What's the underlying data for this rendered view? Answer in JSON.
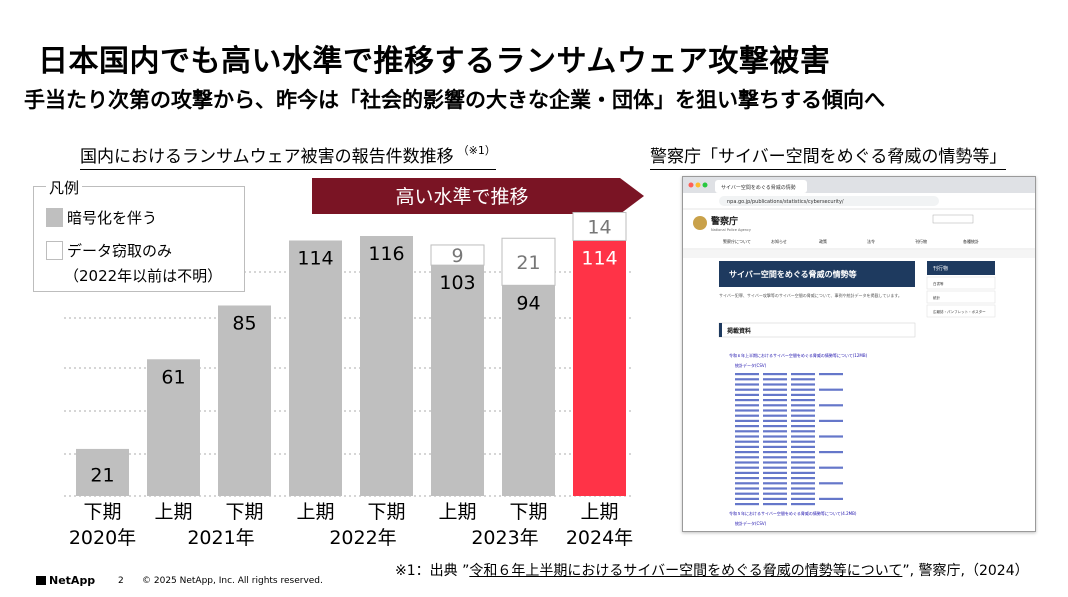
{
  "title": "日本国内でも高い水準で推移するランサムウェア攻撃被害",
  "subtitle": "手当たり次第の攻撃から、昨今は「社会的影響の大きな企業・団体」を狙い撃ちする傾向へ",
  "chart_heading": "国内におけるランサムウェア被害の報告件数推移",
  "chart_heading_note": "（※1）",
  "screenshot_heading": "警察庁「サイバー空間をめぐる脅威の情勢等」",
  "banner_text": "高い水準で推移",
  "legend": {
    "title": "凡例",
    "items": [
      {
        "label": "暗号化を伴う"
      },
      {
        "label": "データ窃取のみ"
      }
    ],
    "note": "（2022年以前は不明）"
  },
  "colors": {
    "encrypted_bar": "#bfbfbf",
    "highlight_bar": "#ff3347",
    "banner": "#7a1424",
    "data_theft_bar": "#ffffff"
  },
  "chart_data": {
    "type": "bar",
    "stacked": true,
    "categories": [
      {
        "half": "下期",
        "year": "2020年"
      },
      {
        "half": "上期",
        "year": ""
      },
      {
        "half": "下期",
        "year": "2021年"
      },
      {
        "half": "上期",
        "year": ""
      },
      {
        "half": "下期",
        "year": "2022年"
      },
      {
        "half": "上期",
        "year": ""
      },
      {
        "half": "下期",
        "year": "2023年"
      },
      {
        "half": "上期",
        "year": "2024年"
      }
    ],
    "year_labels": [
      "2020年",
      "2021年",
      "2022年",
      "2023年",
      "2024年"
    ],
    "series": [
      {
        "name": "暗号化を伴う",
        "values": [
          21,
          61,
          85,
          114,
          116,
          103,
          94,
          114
        ]
      },
      {
        "name": "データ窃取のみ",
        "values": [
          null,
          null,
          null,
          null,
          null,
          9,
          21,
          14
        ]
      }
    ],
    "highlight_index": 7,
    "ylim": [
      0,
      130
    ],
    "grid": true
  },
  "screenshot": {
    "tab_title": "サイバー空間をめぐる脅威の情勢",
    "url": "npa.go.jp/publications/statistics/cybersecurity/",
    "site_name": "警察庁",
    "site_name_en": "National Police Agency",
    "nav_items": [
      "警察庁について",
      "お知らせ",
      "政策",
      "法令",
      "刊行物",
      "各種統計"
    ],
    "page_title": "サイバー空間をめぐる脅威の情勢等",
    "section_title": "掲載資料",
    "side_menu": "刊行物",
    "side_items": [
      "白書等",
      "統計",
      "広報誌・パンフレット・ポスター"
    ],
    "intro": "サイバー犯罪、サイバー攻撃等のサイバー空間の脅威について、事例や統計データを掲載しています。",
    "links": [
      "令和６年上半期におけるサイバー空間をめぐる脅威の情勢等について(12MB)",
      "統計データ(CSV)",
      "令和５年におけるサイバー空間をめぐる脅威の情勢等について(4.2MB)",
      "統計データ(CSV)"
    ]
  },
  "footnote": {
    "prefix": "※1：出典 ”",
    "link": "令和６年上半期におけるサイバー空間をめぐる脅威の情勢等について",
    "suffix": "”, 警察庁,（2024）"
  },
  "footer": {
    "logo": "NetApp",
    "page": "2",
    "copyright": "© 2025 NetApp, Inc. All rights reserved."
  }
}
